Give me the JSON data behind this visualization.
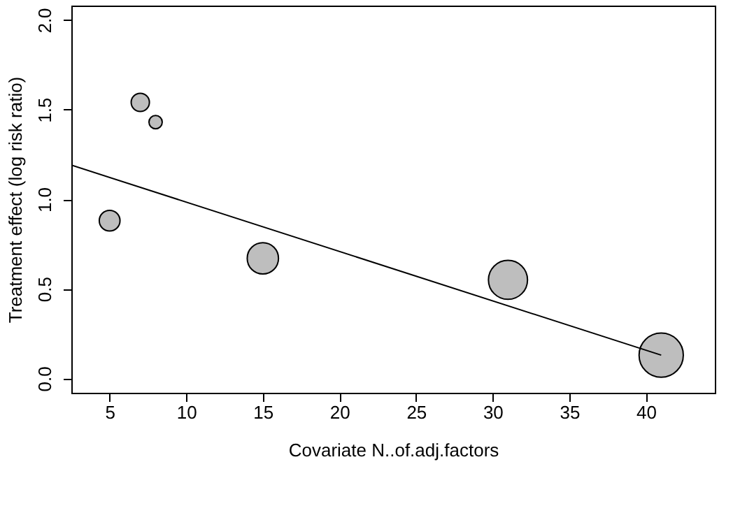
{
  "chart_data": {
    "type": "bubble",
    "xlabel": "Covariate N..of.adj.factors",
    "ylabel": "Treatment effect (log risk ratio)",
    "x": [
      5,
      7,
      8,
      15,
      31,
      41
    ],
    "values": [
      0.88,
      1.54,
      1.43,
      0.67,
      0.55,
      0.13
    ],
    "sizes": [
      0.22,
      0.17,
      0.09,
      0.5,
      0.78,
      1
    ],
    "color": "#bebebe",
    "marker": "circle",
    "series": [
      {
        "type": "line",
        "x": [
          2.5,
          41
        ],
        "values": [
          1.19,
          0.13
        ],
        "color": "#000000",
        "marker": "none"
      }
    ],
    "xlim": [
      2.5,
      44.5
    ],
    "ylim": [
      -0.08,
      2.08
    ],
    "xticks": [
      5,
      10,
      15,
      20,
      25,
      30,
      35,
      40
    ],
    "yticks": [
      {
        "value": 0,
        "label": "0.0"
      },
      {
        "value": 0.5,
        "label": "0.5"
      },
      {
        "value": 1,
        "label": "1.0"
      },
      {
        "value": 1.5,
        "label": "1.5"
      },
      {
        "value": 2,
        "label": "2.0"
      }
    ],
    "grid": false
  }
}
